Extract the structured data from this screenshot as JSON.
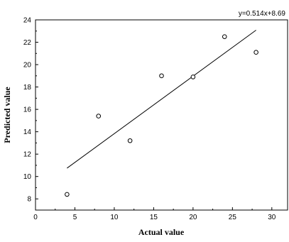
{
  "chart_data": {
    "type": "scatter",
    "xlabel": "Actual value",
    "ylabel": "Predicted value",
    "xlim": [
      0,
      32
    ],
    "ylim": [
      7,
      24
    ],
    "xticks": [
      0,
      5,
      10,
      15,
      20,
      25,
      30
    ],
    "yticks": [
      8,
      10,
      12,
      14,
      16,
      18,
      20,
      22,
      24
    ],
    "grid": false,
    "points": [
      {
        "x": 4,
        "y": 8.4
      },
      {
        "x": 8,
        "y": 15.4
      },
      {
        "x": 12,
        "y": 13.2
      },
      {
        "x": 16,
        "y": 19.0
      },
      {
        "x": 20,
        "y": 18.9
      },
      {
        "x": 24,
        "y": 22.5
      },
      {
        "x": 28,
        "y": 21.1
      }
    ],
    "fit": {
      "equation": "y=0.514x+8.69",
      "slope": 0.514,
      "intercept": 8.69,
      "x_range": [
        4,
        28
      ]
    }
  }
}
